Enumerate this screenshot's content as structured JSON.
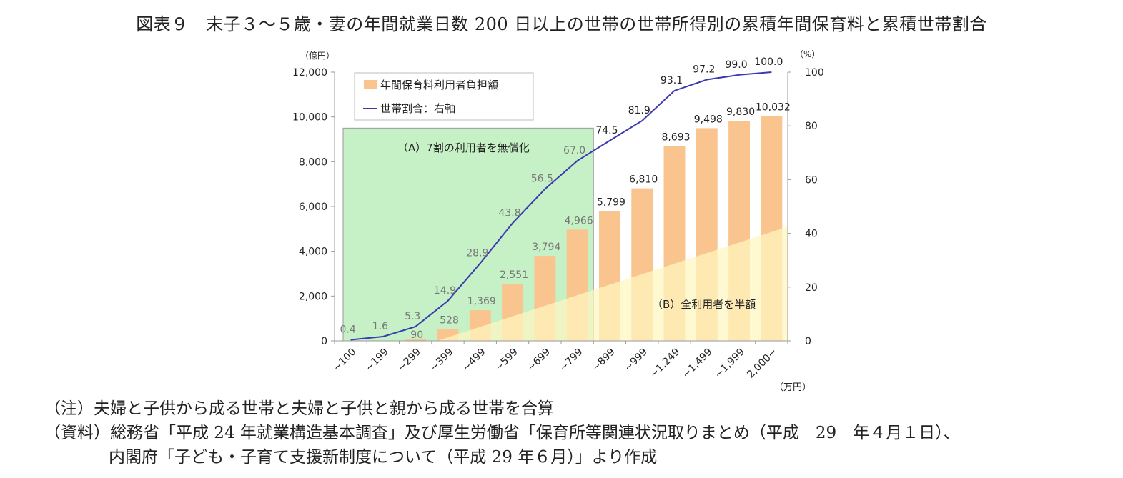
{
  "title": "図表９　末子３～５歳・妻の年間就業日数 200 日以上の世帯の世帯所得別の累積年間保育料と累積世帯割合",
  "chart_data": {
    "type": "bar",
    "categories": [
      "~100",
      "~199",
      "~299",
      "~399",
      "~499",
      "~599",
      "~699",
      "~799",
      "~899",
      "~999",
      "~1,249",
      "~1,499",
      "~1,999",
      "2,000~"
    ],
    "series": [
      {
        "name": "年間保育料利用者負担額",
        "type": "bar",
        "axis": "left",
        "values": [
          null,
          null,
          90,
          528,
          1369,
          2551,
          3794,
          4966,
          5799,
          6810,
          8693,
          9498,
          9830,
          10032
        ],
        "labels": [
          "",
          "",
          "90",
          "528",
          "1,369",
          "2,551",
          "3,794",
          "4,966",
          "5,799",
          "6,810",
          "8,693",
          "9,498",
          "9,830",
          "10,032"
        ],
        "color": "#f9c48d"
      },
      {
        "name": "世帯割合：右軸",
        "type": "line",
        "axis": "right",
        "values": [
          0.4,
          1.6,
          5.3,
          14.9,
          28.9,
          43.8,
          56.5,
          67.0,
          74.5,
          81.9,
          93.1,
          97.2,
          99.0,
          100.0
        ],
        "labels": [
          "0.4",
          "1.6",
          "5.3",
          "14.9",
          "28.9",
          "43.8",
          "56.5",
          "67.0",
          "74.5",
          "81.9",
          "93.1",
          "97.2",
          "99.0",
          "100.0"
        ],
        "color": "#3a3ab0"
      }
    ],
    "y_left": {
      "unit": "（億円）",
      "ticks": [
        "0",
        "2,000",
        "4,000",
        "6,000",
        "8,000",
        "10,000",
        "12,000"
      ],
      "ylim": [
        0,
        12000
      ]
    },
    "y_right": {
      "unit": "（%）",
      "ticks": [
        "0",
        "20",
        "40",
        "60",
        "80",
        "100"
      ],
      "ylim": [
        0,
        100
      ]
    },
    "x_unit": "（万円）",
    "legend": {
      "placement": "top-left",
      "bar": "年間保育料利用者負担額",
      "line": "世帯割合：右軸"
    },
    "annotations": {
      "region_a": {
        "label": "（A）7割の利用者を無償化",
        "color": "#c6f0c6",
        "x_range": [
          "~100",
          "~799"
        ],
        "y_top": 9500
      },
      "region_b": {
        "label": "（B）全利用者を半額",
        "color": "#fff7c0",
        "y_end": 5100
      }
    },
    "grid": false
  },
  "notes": {
    "note_label": "（注）",
    "note_text": "夫婦と子供から成る世帯と夫婦と子供と親から成る世帯を合算",
    "source_label": "（資料）",
    "source_line1": "総務省「平成 24 年就業構造基本調査」及び厚生労働省「保育所等関連状況取りまとめ（平成　29　年４月１日）、",
    "source_line2": "内閣府「子ども・子育て支援新制度について（平成 29 年６月）」より作成"
  }
}
